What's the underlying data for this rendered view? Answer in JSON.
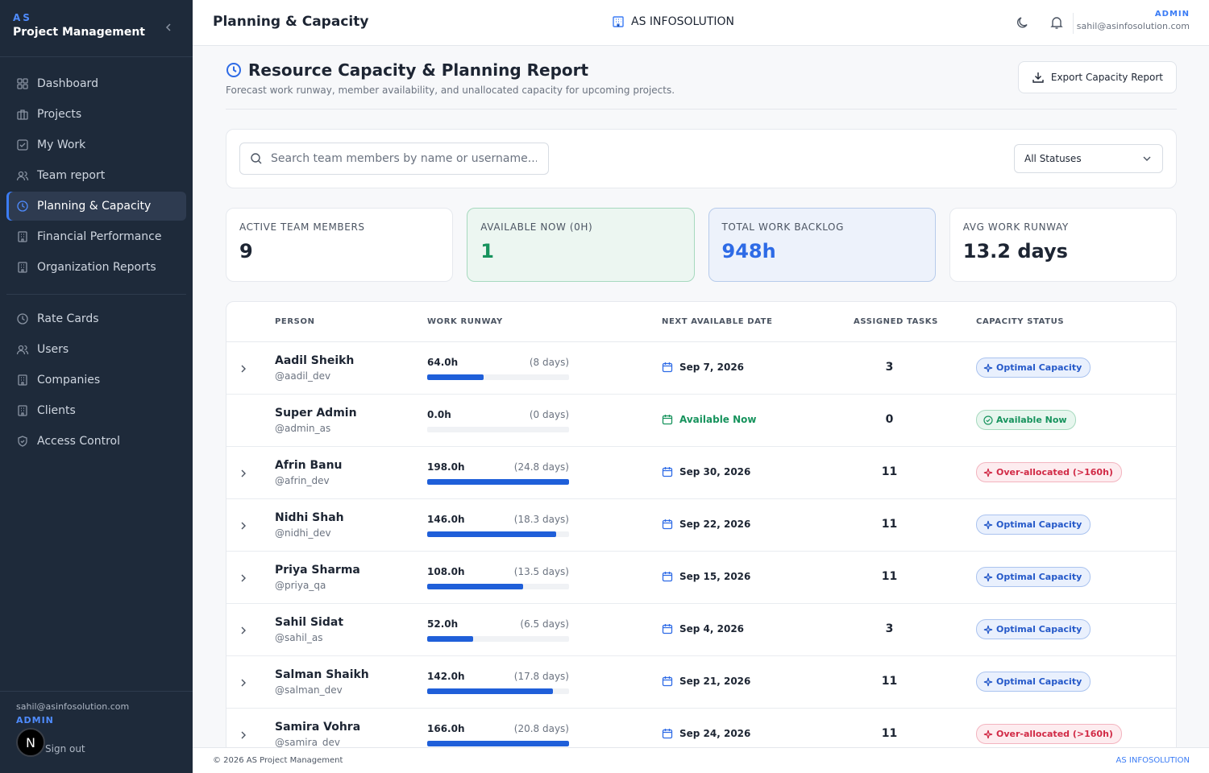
{
  "sidebar": {
    "brand_mark": "AS",
    "brand_name": "Project Management",
    "items": [
      {
        "label": "Dashboard",
        "icon": "grid-icon"
      },
      {
        "label": "Projects",
        "icon": "briefcase-icon"
      },
      {
        "label": "My Work",
        "icon": "check-square-icon"
      },
      {
        "label": "Team report",
        "icon": "users-icon"
      },
      {
        "label": "Planning & Capacity",
        "icon": "clock-icon",
        "active": true
      },
      {
        "label": "Financial Performance",
        "icon": "building-icon"
      },
      {
        "label": "Organization Reports",
        "icon": "building-icon"
      }
    ],
    "admin_items": [
      {
        "label": "Rate Cards",
        "icon": "clock-icon"
      },
      {
        "label": "Users",
        "icon": "users-icon"
      },
      {
        "label": "Companies",
        "icon": "building-icon"
      },
      {
        "label": "Clients",
        "icon": "building-icon"
      },
      {
        "label": "Access Control",
        "icon": "shield-icon"
      }
    ],
    "footer": {
      "email": "sahil@asinfosolution.com",
      "role": "ADMIN",
      "avatar_letter": "N",
      "signout_label": "Sign out"
    }
  },
  "header": {
    "title": "Planning & Capacity",
    "organization": "AS INFOSOLUTION",
    "user_role": "ADMIN",
    "user_email": "sahil@asinfosolution.com"
  },
  "report": {
    "title": "Resource Capacity & Planning Report",
    "subtitle": "Forecast work runway, member availability, and unallocated capacity for upcoming projects.",
    "export_label": "Export Capacity Report"
  },
  "filters": {
    "search_placeholder": "Search team members by name or username...",
    "status_selected": "All Statuses"
  },
  "stats": [
    {
      "label": "ACTIVE TEAM MEMBERS",
      "value": "9"
    },
    {
      "label": "AVAILABLE NOW (0H)",
      "value": "1"
    },
    {
      "label": "TOTAL WORK BACKLOG",
      "value": "948h"
    },
    {
      "label": "AVG WORK RUNWAY",
      "value": "13.2 days"
    }
  ],
  "table": {
    "columns": [
      "PERSON",
      "WORK RUNWAY",
      "NEXT AVAILABLE DATE",
      "ASSIGNED TASKS",
      "CAPACITY STATUS"
    ],
    "rows": [
      {
        "name": "Aadil Sheikh",
        "username": "@aadil_dev",
        "hours": "64.0h",
        "days": "(8 days)",
        "fill": 0.4,
        "date": "Sep 7, 2026",
        "tasks": "3",
        "status": "Optimal Capacity",
        "status_type": "optimal",
        "expandable": true
      },
      {
        "name": "Super Admin",
        "username": "@admin_as",
        "hours": "0.0h",
        "days": "(0 days)",
        "fill": 0,
        "date": "Available Now",
        "tasks": "0",
        "status": "Available Now",
        "status_type": "available",
        "expandable": false
      },
      {
        "name": "Afrin Banu",
        "username": "@afrin_dev",
        "hours": "198.0h",
        "days": "(24.8 days)",
        "fill": 1.0,
        "date": "Sep 30, 2026",
        "tasks": "11",
        "status": "Over-allocated (>160h)",
        "status_type": "over",
        "expandable": true
      },
      {
        "name": "Nidhi Shah",
        "username": "@nidhi_dev",
        "hours": "146.0h",
        "days": "(18.3 days)",
        "fill": 0.91,
        "date": "Sep 22, 2026",
        "tasks": "11",
        "status": "Optimal Capacity",
        "status_type": "optimal",
        "expandable": true
      },
      {
        "name": "Priya Sharma",
        "username": "@priya_qa",
        "hours": "108.0h",
        "days": "(13.5 days)",
        "fill": 0.675,
        "date": "Sep 15, 2026",
        "tasks": "11",
        "status": "Optimal Capacity",
        "status_type": "optimal",
        "expandable": true
      },
      {
        "name": "Sahil Sidat",
        "username": "@sahil_as",
        "hours": "52.0h",
        "days": "(6.5 days)",
        "fill": 0.325,
        "date": "Sep 4, 2026",
        "tasks": "3",
        "status": "Optimal Capacity",
        "status_type": "optimal",
        "expandable": true
      },
      {
        "name": "Salman Shaikh",
        "username": "@salman_dev",
        "hours": "142.0h",
        "days": "(17.8 days)",
        "fill": 0.8875,
        "date": "Sep 21, 2026",
        "tasks": "11",
        "status": "Optimal Capacity",
        "status_type": "optimal",
        "expandable": true
      },
      {
        "name": "Samira Vohra",
        "username": "@samira_dev",
        "hours": "166.0h",
        "days": "(20.8 days)",
        "fill": 1.0,
        "date": "Sep 24, 2026",
        "tasks": "11",
        "status": "Over-allocated (>160h)",
        "status_type": "over",
        "expandable": true
      }
    ]
  },
  "footer": {
    "copyright": "© 2026 AS Project Management",
    "organization": "AS INFOSOLUTION"
  },
  "colors": {
    "sidebar_bg": "#1e2a3a",
    "accent": "#3b7cf5",
    "available": "#17935d",
    "over": "#d12a46",
    "bar": "#1f5fd9"
  }
}
